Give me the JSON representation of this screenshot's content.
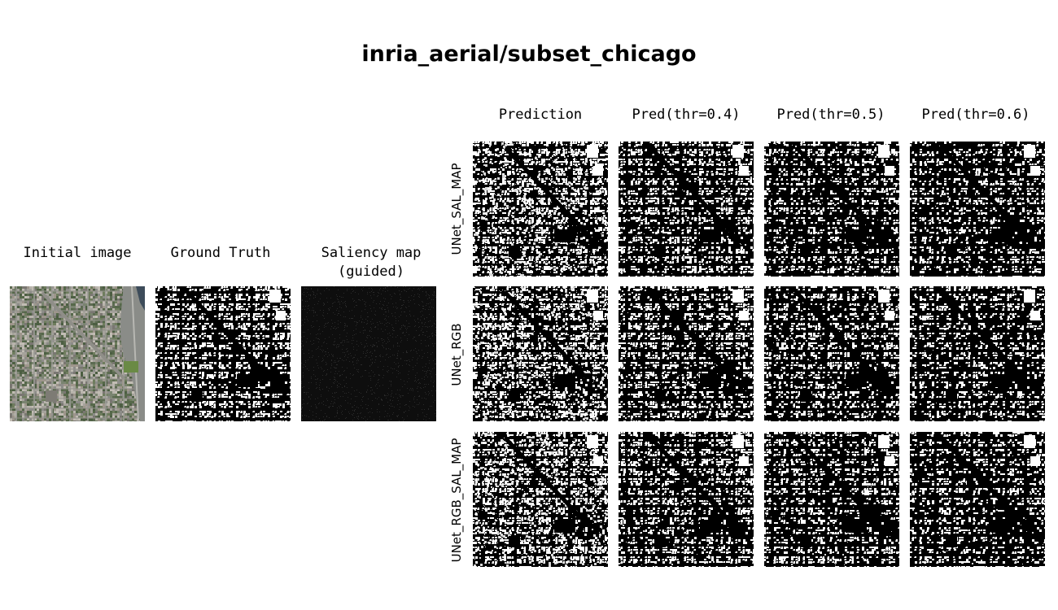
{
  "title": "inria_aerial/subset_chicago",
  "left_columns": {
    "initial_image": "Initial image",
    "ground_truth": "Ground Truth",
    "saliency_map": "Saliency map\n(guided)"
  },
  "prediction_columns": [
    "Prediction",
    "Pred(thr=0.4)",
    "Pred(thr=0.5)",
    "Pred(thr=0.6)"
  ],
  "model_rows": [
    "UNet_SAL_MAP",
    "UNet_RGB",
    "UNet_RGB_SAL_MAP"
  ],
  "colors": {
    "background": "#ffffff",
    "mask_on": "#ffffff",
    "mask_off": "#000000",
    "saliency_bg": "#0e0e0e",
    "aerial_base": "#6e7866"
  }
}
